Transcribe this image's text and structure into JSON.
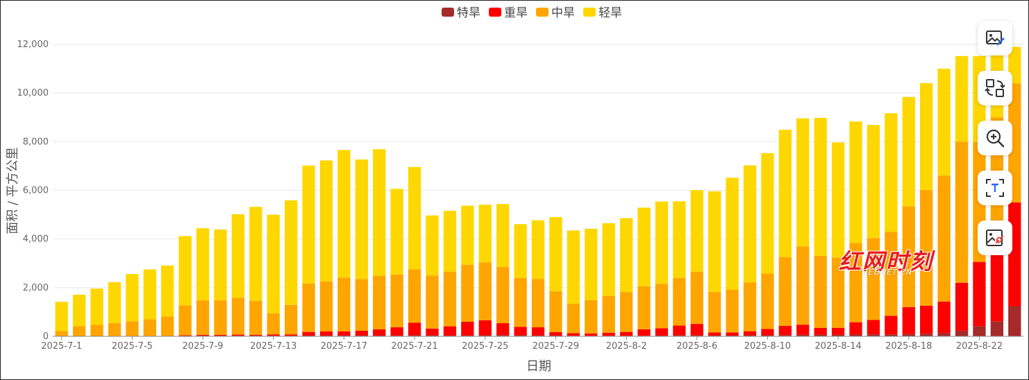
{
  "chart_data": {
    "type": "bar",
    "stacked": true,
    "title": "",
    "xlabel": "日期",
    "ylabel": "面积 / 平方公里",
    "ylim": [
      0,
      12000
    ],
    "yticks": [
      0,
      2000,
      4000,
      6000,
      8000,
      10000,
      12000
    ],
    "ytick_labels": [
      "0",
      "2,000",
      "4,000",
      "6,000",
      "8,000",
      "10,000",
      "12,000"
    ],
    "grid": true,
    "legend_position": "top-center",
    "x_tick_labels": [
      "2025-7-1",
      "2025-7-5",
      "2025-7-9",
      "2025-7-13",
      "2025-7-17",
      "2025-7-21",
      "2025-7-25",
      "2025-7-29",
      "2025-8-2",
      "2025-8-6",
      "2025-8-10",
      "2025-8-14",
      "2025-8-18",
      "2025-8-22"
    ],
    "categories": [
      "2025-7-1",
      "2025-7-2",
      "2025-7-3",
      "2025-7-4",
      "2025-7-5",
      "2025-7-6",
      "2025-7-7",
      "2025-7-8",
      "2025-7-9",
      "2025-7-10",
      "2025-7-11",
      "2025-7-12",
      "2025-7-13",
      "2025-7-14",
      "2025-7-15",
      "2025-7-16",
      "2025-7-17",
      "2025-7-18",
      "2025-7-19",
      "2025-7-20",
      "2025-7-21",
      "2025-7-22",
      "2025-7-23",
      "2025-7-24",
      "2025-7-25",
      "2025-7-26",
      "2025-7-27",
      "2025-7-28",
      "2025-7-29",
      "2025-7-30",
      "2025-7-31",
      "2025-8-1",
      "2025-8-2",
      "2025-8-3",
      "2025-8-4",
      "2025-8-5",
      "2025-8-6",
      "2025-8-7",
      "2025-8-8",
      "2025-8-9",
      "2025-8-10",
      "2025-8-11",
      "2025-8-12",
      "2025-8-13",
      "2025-8-14",
      "2025-8-15",
      "2025-8-16",
      "2025-8-17",
      "2025-8-18",
      "2025-8-19",
      "2025-8-20",
      "2025-8-21",
      "2025-8-22",
      "2025-8-23",
      "2025-8-24"
    ],
    "series": [
      {
        "name": "特旱",
        "color": "#a52a2a",
        "values": [
          0,
          0,
          0,
          0,
          0,
          0,
          0,
          10,
          20,
          20,
          20,
          20,
          20,
          20,
          30,
          30,
          30,
          30,
          30,
          30,
          40,
          40,
          30,
          30,
          40,
          50,
          40,
          30,
          30,
          20,
          20,
          20,
          20,
          20,
          30,
          40,
          40,
          30,
          30,
          40,
          40,
          50,
          60,
          60,
          60,
          70,
          80,
          80,
          90,
          110,
          140,
          230,
          420,
          620,
          1240
        ]
      },
      {
        "name": "重旱",
        "color": "#ff0000",
        "values": [
          0,
          0,
          0,
          0,
          0,
          0,
          0,
          30,
          40,
          40,
          50,
          40,
          60,
          60,
          150,
          170,
          170,
          200,
          260,
          340,
          520,
          280,
          380,
          570,
          620,
          490,
          350,
          340,
          140,
          110,
          100,
          130,
          160,
          270,
          300,
          400,
          470,
          130,
          130,
          170,
          260,
          380,
          420,
          290,
          290,
          510,
          590,
          760,
          1110,
          1150,
          1290,
          1970,
          2640,
          3200,
          4260
        ]
      },
      {
        "name": "中旱",
        "color": "#ffa500",
        "values": [
          220,
          420,
          470,
          540,
          620,
          700,
          820,
          1230,
          1420,
          1420,
          1510,
          1400,
          860,
          1210,
          1990,
          2060,
          2210,
          2120,
          2190,
          2170,
          2200,
          2180,
          2250,
          2340,
          2380,
          2320,
          2010,
          1990,
          1680,
          1210,
          1370,
          1510,
          1630,
          1770,
          1830,
          1960,
          2150,
          1660,
          1760,
          2010,
          2280,
          2830,
          3220,
          2960,
          2890,
          3260,
          3370,
          3460,
          4140,
          4760,
          5180,
          5800,
          4930,
          5180,
          4900
        ]
      },
      {
        "name": "轻旱",
        "color": "#ffd700",
        "values": [
          1200,
          1290,
          1490,
          1690,
          1940,
          2050,
          2090,
          2850,
          2960,
          2910,
          3440,
          3860,
          4060,
          4300,
          4850,
          4970,
          5250,
          4920,
          5210,
          3520,
          4200,
          2470,
          2500,
          2430,
          2370,
          2580,
          2210,
          2410,
          3050,
          3010,
          2930,
          2990,
          3050,
          3230,
          3380,
          3150,
          3350,
          4140,
          4600,
          4810,
          4950,
          5230,
          5260,
          5670,
          4730,
          4990,
          4650,
          4870,
          4500,
          4390,
          4390,
          3520,
          3530,
          2800,
          1500
        ]
      }
    ]
  },
  "toolbar": {
    "buttons": [
      {
        "icon": "image-edit-icon"
      },
      {
        "icon": "convert-icon"
      },
      {
        "icon": "zoom-in-icon"
      },
      {
        "icon": "text-extract-icon"
      },
      {
        "icon": "image-link-icon"
      }
    ]
  },
  "watermark": {
    "main": "红网时刻",
    "sub": "REDNET.CN"
  }
}
